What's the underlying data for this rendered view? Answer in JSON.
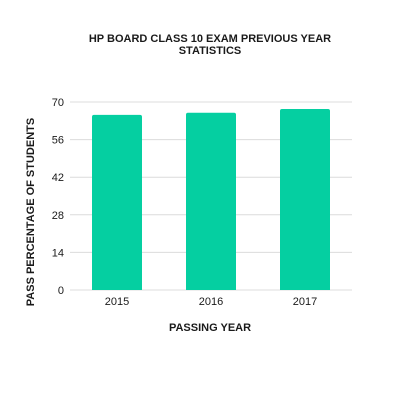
{
  "chart_data": {
    "type": "bar",
    "title_line1": "HP BOARD CLASS 10 EXAM PREVIOUS YEAR",
    "title_line2": "STATISTICS",
    "xlabel": "PASSING YEAR",
    "ylabel": "PASS PERCENTAGE OF STUDENTS",
    "categories": [
      "2015",
      "2016",
      "2017"
    ],
    "values": [
      65.2,
      66.0,
      67.4
    ],
    "ylim": [
      0,
      70
    ],
    "yticks": [
      0,
      14,
      28,
      42,
      56,
      70
    ],
    "grid": true,
    "bar_color": "#05cfa1",
    "grid_color": "#dcdcdc"
  }
}
